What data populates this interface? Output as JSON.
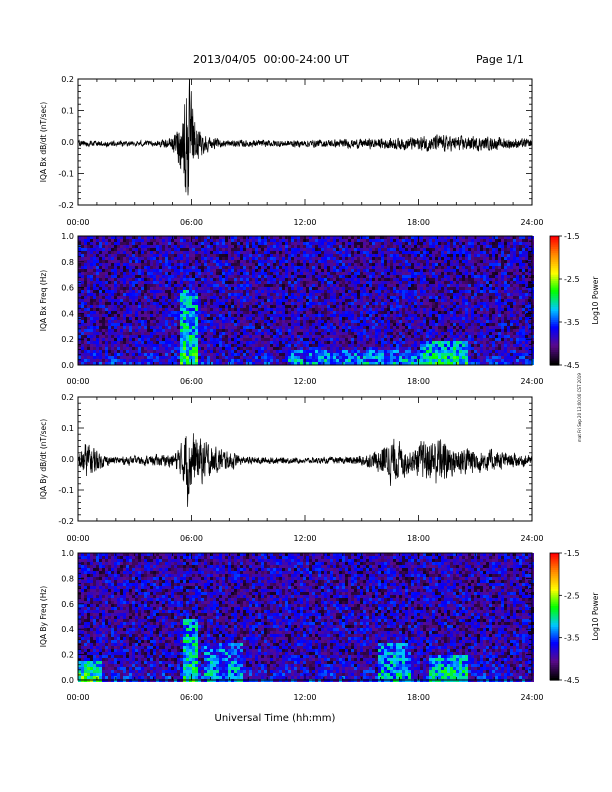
{
  "header": {
    "title": "2013/04/05  00:00-24:00 UT",
    "page": "Page 1/1"
  },
  "footer": {
    "xlabel": "Universal Time (hh:mm)",
    "stamp": "mat Fri Sep 20 13:00:00 CST 2019"
  },
  "colors": {
    "trace": "#000000",
    "colormap": [
      "#000000",
      "#5a0a8c",
      "#0000ff",
      "#00c8ff",
      "#00ff00",
      "#ffff00",
      "#ff8c00",
      "#ff0000"
    ]
  },
  "chart_data": [
    {
      "type": "line",
      "ylabel": "IQA Bx dB/dt (nT/sec)",
      "xlim": [
        0,
        24
      ],
      "ylim": [
        -0.2,
        0.2
      ],
      "xticks": [
        "00:00",
        "06:00",
        "12:00",
        "18:00",
        "24:00"
      ],
      "yticks": [
        "-0.2",
        "-0.1",
        "0.0",
        "0.1",
        "0.2"
      ],
      "envelope": {
        "x": [
          0,
          1,
          2,
          3,
          4,
          4.8,
          5.2,
          5.5,
          5.75,
          5.9,
          6.1,
          6.4,
          7,
          8,
          10,
          12,
          14,
          16,
          18,
          19,
          20,
          21,
          22,
          23,
          24
        ],
        "amplitude": [
          0.008,
          0.008,
          0.008,
          0.008,
          0.008,
          0.012,
          0.04,
          0.09,
          0.2,
          0.17,
          0.09,
          0.04,
          0.015,
          0.01,
          0.01,
          0.01,
          0.012,
          0.015,
          0.02,
          0.025,
          0.02,
          0.02,
          0.018,
          0.015,
          0.012
        ]
      }
    },
    {
      "type": "heatmap",
      "ylabel": "IQA Bx Freq (Hz)",
      "xlim": [
        0,
        24
      ],
      "ylim": [
        0,
        1.0
      ],
      "xticks": [
        "00:00",
        "06:00",
        "12:00",
        "18:00",
        "24:00"
      ],
      "yticks": [
        "0.0",
        "0.2",
        "0.4",
        "0.6",
        "0.8",
        "1.0"
      ],
      "colorbar": {
        "label": "Log10 Power",
        "range": [
          -4.5,
          -1.5
        ],
        "ticks": [
          "-1.5",
          "-2.5",
          "-3.5",
          "-4.5"
        ]
      },
      "features": [
        {
          "x": [
            5.3,
            6.2
          ],
          "fmax": 0.6,
          "power": -3.0
        },
        {
          "x": [
            11,
            18
          ],
          "fmax": 0.12,
          "power": -3.3
        },
        {
          "x": [
            18,
            20.5
          ],
          "fmax": 0.2,
          "power": -3.0
        }
      ]
    },
    {
      "type": "line",
      "ylabel": "IQA By dB/dt (nT/sec)",
      "xlim": [
        0,
        24
      ],
      "ylim": [
        -0.2,
        0.2
      ],
      "xticks": [
        "00:00",
        "06:00",
        "12:00",
        "18:00",
        "24:00"
      ],
      "yticks": [
        "-0.2",
        "-0.1",
        "0.0",
        "0.1",
        "0.2"
      ],
      "envelope": {
        "x": [
          0,
          0.4,
          0.8,
          1.1,
          1.5,
          2,
          3,
          4,
          5,
          5.5,
          5.8,
          6.1,
          6.6,
          7.2,
          7.8,
          8.2,
          8.6,
          10,
          12,
          14,
          15.5,
          16,
          16.6,
          17.2,
          17.6,
          18,
          18.6,
          19,
          19.6,
          20,
          20.6,
          21,
          22,
          23,
          24
        ],
        "amplitude": [
          0.02,
          0.055,
          0.045,
          0.025,
          0.015,
          0.012,
          0.012,
          0.015,
          0.02,
          0.05,
          0.12,
          0.08,
          0.06,
          0.04,
          0.03,
          0.025,
          0.012,
          0.01,
          0.008,
          0.01,
          0.02,
          0.04,
          0.065,
          0.05,
          0.03,
          0.05,
          0.06,
          0.08,
          0.05,
          0.04,
          0.045,
          0.035,
          0.03,
          0.02,
          0.015
        ]
      }
    },
    {
      "type": "heatmap",
      "ylabel": "IQA By Freq (Hz)",
      "xlim": [
        0,
        24
      ],
      "ylim": [
        0,
        1.0
      ],
      "xticks": [
        "00:00",
        "06:00",
        "12:00",
        "18:00",
        "24:00"
      ],
      "yticks": [
        "0.0",
        "0.2",
        "0.4",
        "0.6",
        "0.8",
        "1.0"
      ],
      "colorbar": {
        "label": "Log10 Power",
        "range": [
          -4.5,
          -1.5
        ],
        "ticks": [
          "-1.5",
          "-2.5",
          "-3.5",
          "-4.5"
        ]
      },
      "features": [
        {
          "x": [
            0,
            1.2
          ],
          "fmax": 0.15,
          "power": -2.8
        },
        {
          "x": [
            5.4,
            6.3
          ],
          "fmax": 0.5,
          "power": -3.0
        },
        {
          "x": [
            6.6,
            8.6
          ],
          "fmax": 0.3,
          "power": -3.3
        },
        {
          "x": [
            15.8,
            17.6
          ],
          "fmax": 0.3,
          "power": -3.2
        },
        {
          "x": [
            18.5,
            20.5
          ],
          "fmax": 0.2,
          "power": -3.0
        }
      ]
    }
  ]
}
